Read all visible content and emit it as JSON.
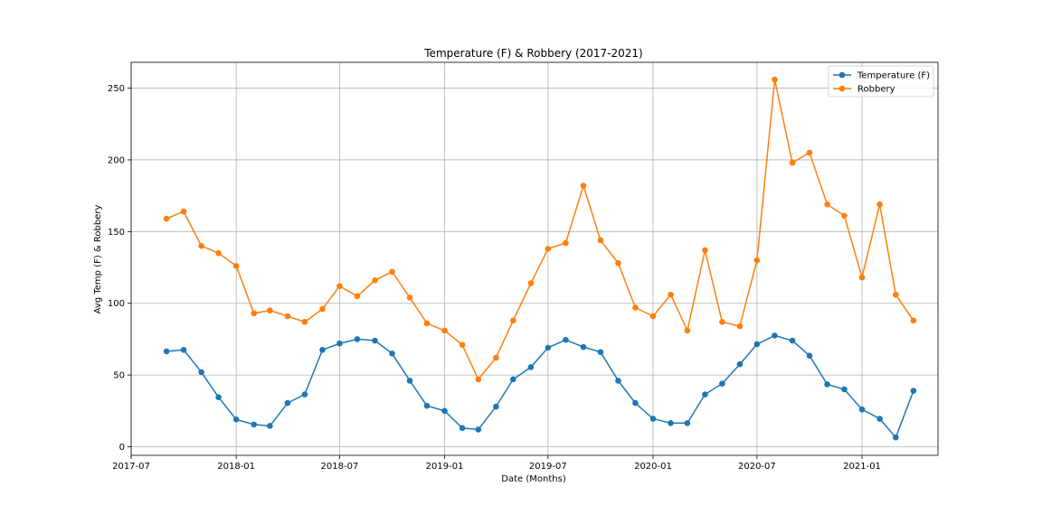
{
  "chart_data": {
    "type": "line",
    "title": "Temperature (F) & Robbery (2017-2021)",
    "xlabel": "Date (Months)",
    "ylabel": "Avg Temp (F) & Robbery",
    "x": [
      "2017-09",
      "2017-10",
      "2017-11",
      "2017-12",
      "2018-01",
      "2018-02",
      "2018-03",
      "2018-04",
      "2018-05",
      "2018-06",
      "2018-07",
      "2018-08",
      "2018-09",
      "2018-10",
      "2018-11",
      "2018-12",
      "2019-01",
      "2019-02",
      "2019-03",
      "2019-04",
      "2019-05",
      "2019-06",
      "2019-07",
      "2019-08",
      "2019-09",
      "2019-10",
      "2019-11",
      "2019-12",
      "2020-01",
      "2020-02",
      "2020-03",
      "2020-04",
      "2020-05",
      "2020-06",
      "2020-07",
      "2020-08",
      "2020-09",
      "2020-10",
      "2020-11",
      "2020-12",
      "2021-01",
      "2021-02",
      "2021-03",
      "2021-04"
    ],
    "x_ticks": [
      "2017-07",
      "2018-01",
      "2018-07",
      "2019-01",
      "2019-07",
      "2020-01",
      "2020-07",
      "2021-01"
    ],
    "xlim": [
      "2017-07-01",
      "2021-05-14"
    ],
    "y_ticks": [
      0,
      50,
      100,
      150,
      200,
      250
    ],
    "ylim": [
      -6,
      268
    ],
    "grid": true,
    "legend_position": "top-right",
    "series": [
      {
        "name": "Temperature (F)",
        "color": "#1f77b4",
        "values": [
          66.5,
          67.5,
          52,
          34.5,
          19,
          15.5,
          14.5,
          30.5,
          36.5,
          67.5,
          72,
          75,
          74,
          65,
          46,
          28.5,
          25,
          13,
          12,
          28,
          47,
          55.5,
          69,
          74.5,
          69.5,
          66,
          46,
          30.5,
          19.5,
          16.5,
          16.5,
          36.5,
          44,
          57.5,
          71.5,
          77.5,
          74,
          63.5,
          43.5,
          40,
          26,
          19.5,
          6.5,
          39
        ]
      },
      {
        "name": "Robbery",
        "color": "#ff7f0e",
        "values": [
          159,
          164,
          140,
          135,
          126,
          93,
          95,
          91,
          87,
          96,
          112,
          105,
          116,
          122,
          104,
          86,
          81,
          71,
          47,
          62,
          88,
          114,
          138,
          142,
          182,
          144,
          128,
          97,
          91,
          106,
          81,
          137,
          87,
          84,
          130,
          256,
          198,
          205,
          169,
          161,
          118,
          169,
          106,
          88
        ]
      }
    ]
  }
}
